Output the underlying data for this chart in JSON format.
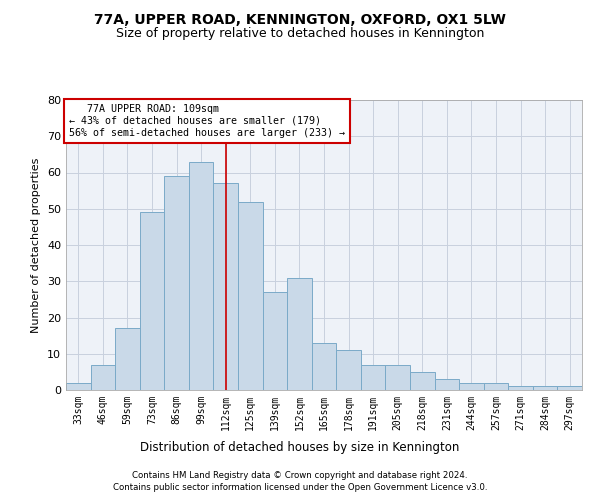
{
  "title1": "77A, UPPER ROAD, KENNINGTON, OXFORD, OX1 5LW",
  "title2": "Size of property relative to detached houses in Kennington",
  "xlabel": "Distribution of detached houses by size in Kennington",
  "ylabel": "Number of detached properties",
  "footer1": "Contains HM Land Registry data © Crown copyright and database right 2024.",
  "footer2": "Contains public sector information licensed under the Open Government Licence v3.0.",
  "annotation_line1": "   77A UPPER ROAD: 109sqm",
  "annotation_line2": "← 43% of detached houses are smaller (179)",
  "annotation_line3": "56% of semi-detached houses are larger (233) →",
  "bar_color": "#c9d9e8",
  "bar_edge_color": "#7aaac8",
  "vline_color": "#cc0000",
  "annotation_box_edge_color": "#cc0000",
  "grid_color": "#c8d0de",
  "bg_color": "#eef2f8",
  "categories": [
    "33sqm",
    "46sqm",
    "59sqm",
    "73sqm",
    "86sqm",
    "99sqm",
    "112sqm",
    "125sqm",
    "139sqm",
    "152sqm",
    "165sqm",
    "178sqm",
    "191sqm",
    "205sqm",
    "218sqm",
    "231sqm",
    "244sqm",
    "257sqm",
    "271sqm",
    "284sqm",
    "297sqm"
  ],
  "values": [
    2,
    7,
    17,
    49,
    59,
    63,
    57,
    52,
    27,
    31,
    13,
    11,
    7,
    7,
    5,
    3,
    2,
    2,
    1,
    1,
    1
  ],
  "ylim": [
    0,
    80
  ],
  "yticks": [
    0,
    10,
    20,
    30,
    40,
    50,
    60,
    70,
    80
  ],
  "vline_x_index": 6
}
